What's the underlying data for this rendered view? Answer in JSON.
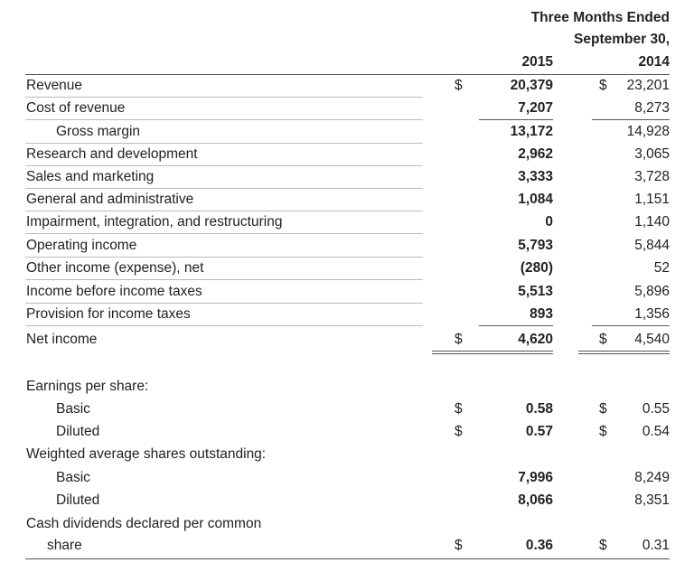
{
  "header": {
    "line1": "Three Months Ended",
    "line2": "September 30,",
    "year_a": "2015",
    "year_b": "2014"
  },
  "table": {
    "rows": [
      {
        "label": "Revenue",
        "cur_a": "$",
        "a": "20,379",
        "cur_b": "$",
        "b": "23,201"
      },
      {
        "label": "Cost of revenue",
        "a": "7,207",
        "b": "8,273"
      },
      {
        "label": "Gross margin",
        "a": "13,172",
        "b": "14,928"
      },
      {
        "label": "Research and development",
        "a": "2,962",
        "b": "3,065"
      },
      {
        "label": "Sales and marketing",
        "a": "3,333",
        "b": "3,728"
      },
      {
        "label": "General and administrative",
        "a": "1,084",
        "b": "1,151"
      },
      {
        "label": "Impairment, integration, and restructuring",
        "a": "0",
        "b": "1,140"
      },
      {
        "label": "Operating income",
        "a": "5,793",
        "b": "5,844"
      },
      {
        "label": "Other income (expense), net",
        "a": "(280)",
        "b": "52"
      },
      {
        "label": "Income before income taxes",
        "a": "5,513",
        "b": "5,896"
      },
      {
        "label": "Provision for income taxes",
        "a": "893",
        "b": "1,356"
      },
      {
        "label": "Net income",
        "cur_a": "$",
        "a": "4,620",
        "cur_b": "$",
        "b": "4,540"
      },
      {
        "label": "Earnings per share:"
      },
      {
        "label": "Basic",
        "cur_a": "$",
        "a": "0.58",
        "cur_b": "$",
        "b": "0.55"
      },
      {
        "label": "Diluted",
        "cur_a": "$",
        "a": "0.57",
        "cur_b": "$",
        "b": "0.54"
      },
      {
        "label": "Weighted average shares outstanding:"
      },
      {
        "label": "Basic",
        "a": "7,996",
        "b": "8,249"
      },
      {
        "label": "Diluted",
        "a": "8,066",
        "b": "8,351"
      },
      {
        "label": "Cash dividends declared per common",
        "label_cont": "share",
        "cur_a": "$",
        "a": "0.36",
        "cur_b": "$",
        "b": "0.31"
      }
    ]
  }
}
